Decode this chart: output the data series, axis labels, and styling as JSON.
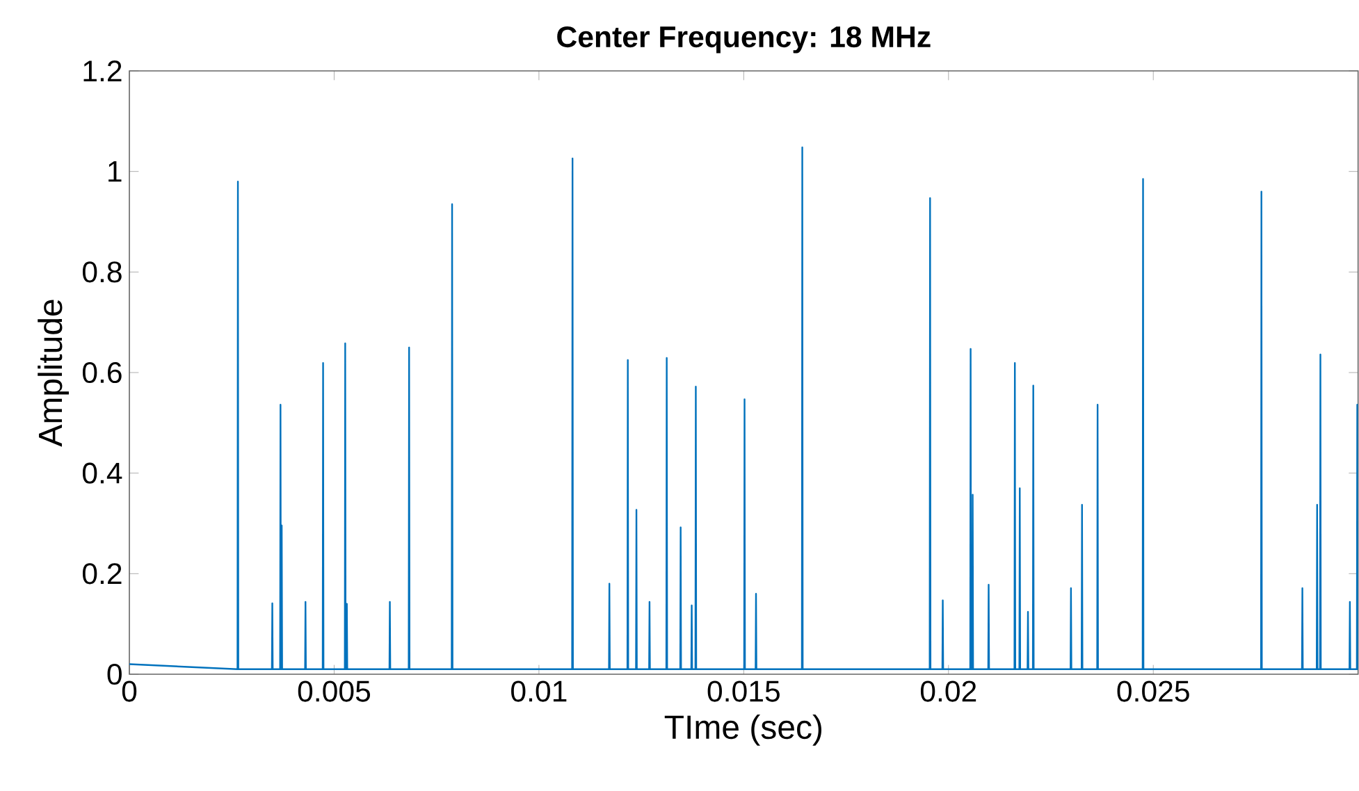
{
  "chart_data": {
    "type": "line",
    "title": "Center Frequency: 18 MHz",
    "xlabel": "TIme (sec)",
    "ylabel": "Amplitude",
    "color": "#0072bd",
    "xlim": [
      0,
      0.03
    ],
    "ylim": [
      0,
      1.2
    ],
    "xticks": [
      0,
      0.005,
      0.01,
      0.015,
      0.02,
      0.025
    ],
    "yticks": [
      0,
      0.2,
      0.4,
      0.6,
      0.8,
      1,
      1.2
    ],
    "x": [
      0,
      0.00264,
      0.00265,
      0.00266,
      0.00348,
      0.00349,
      0.0035,
      0.00368,
      0.00369,
      0.0037,
      0.00371,
      0.00372,
      0.00373,
      0.00429,
      0.0043,
      0.00431,
      0.00472,
      0.00473,
      0.00474,
      0.00526,
      0.00527,
      0.00528,
      0.0053,
      0.00531,
      0.00532,
      0.00635,
      0.00636,
      0.00637,
      0.00682,
      0.00683,
      0.00684,
      0.00787,
      0.00788,
      0.00789,
      0.01081,
      0.01082,
      0.01083,
      0.01171,
      0.01172,
      0.01173,
      0.01216,
      0.01217,
      0.01218,
      0.01237,
      0.01238,
      0.01239,
      0.01269,
      0.0127,
      0.01271,
      0.01311,
      0.01312,
      0.01313,
      0.01345,
      0.01346,
      0.01347,
      0.01372,
      0.01373,
      0.01374,
      0.01382,
      0.01383,
      0.01384,
      0.01501,
      0.01502,
      0.01503,
      0.01529,
      0.0153,
      0.01531,
      0.01642,
      0.01643,
      0.01644,
      0.01954,
      0.01955,
      0.01956,
      0.01985,
      0.01986,
      0.01987,
      0.02053,
      0.02054,
      0.02055,
      0.02058,
      0.02059,
      0.0206,
      0.02097,
      0.02098,
      0.02099,
      0.02161,
      0.02162,
      0.02163,
      0.02173,
      0.02174,
      0.02175,
      0.02193,
      0.02194,
      0.02195,
      0.02206,
      0.02207,
      0.02208,
      0.02298,
      0.02299,
      0.023,
      0.02325,
      0.02326,
      0.02327,
      0.02363,
      0.02364,
      0.02365,
      0.02474,
      0.02475,
      0.02476,
      0.02763,
      0.02764,
      0.02765,
      0.02863,
      0.02864,
      0.02865,
      0.02899,
      0.029,
      0.02901,
      0.02907,
      0.02908,
      0.02909,
      0.02979,
      0.0298,
      0.02981,
      0.02997,
      0.02998,
      0.02999,
      0.03
    ],
    "values": [
      0.02,
      0.01,
      0.98,
      0.01,
      0.01,
      0.141,
      0.01,
      0.01,
      0.536,
      0.01,
      0.01,
      0.296,
      0.01,
      0.01,
      0.144,
      0.01,
      0.01,
      0.619,
      0.01,
      0.01,
      0.658,
      0.01,
      0.01,
      0.14,
      0.01,
      0.01,
      0.144,
      0.01,
      0.01,
      0.65,
      0.01,
      0.01,
      0.935,
      0.01,
      0.01,
      1.026,
      0.01,
      0.01,
      0.18,
      0.01,
      0.01,
      0.625,
      0.01,
      0.01,
      0.327,
      0.01,
      0.01,
      0.144,
      0.01,
      0.01,
      0.629,
      0.01,
      0.01,
      0.292,
      0.01,
      0.01,
      0.137,
      0.01,
      0.01,
      0.572,
      0.01,
      0.01,
      0.547,
      0.01,
      0.01,
      0.16,
      0.01,
      0.01,
      1.048,
      0.01,
      0.01,
      0.947,
      0.01,
      0.01,
      0.147,
      0.01,
      0.01,
      0.647,
      0.01,
      0.01,
      0.357,
      0.01,
      0.01,
      0.178,
      0.01,
      0.01,
      0.619,
      0.01,
      0.01,
      0.37,
      0.01,
      0.01,
      0.124,
      0.01,
      0.01,
      0.574,
      0.01,
      0.01,
      0.171,
      0.01,
      0.01,
      0.337,
      0.01,
      0.01,
      0.536,
      0.01,
      0.01,
      0.985,
      0.01,
      0.01,
      0.96,
      0.01,
      0.01,
      0.171,
      0.01,
      0.01,
      0.337,
      0.01,
      0.01,
      0.636,
      0.01,
      0.01,
      0.144,
      0.01,
      0.01,
      0.536,
      0.01,
      0.01
    ]
  }
}
